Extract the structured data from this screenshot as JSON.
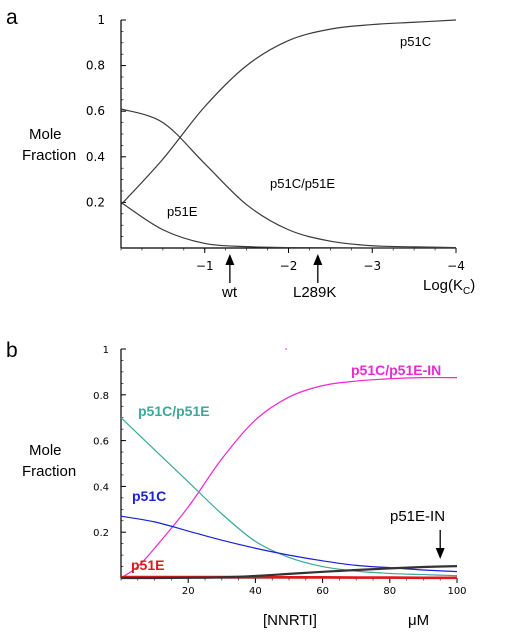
{
  "chart_data": [
    {
      "panel_label": "a",
      "type": "line",
      "ylabel_lines": [
        "Mole",
        "Fraction"
      ],
      "xlabel_text": "Log(K",
      "xlabel_sub": "C",
      "xlabel_close": ")",
      "xlim": [
        0,
        -4
      ],
      "ylim": [
        0,
        1
      ],
      "xticks": [
        -1,
        -2,
        -3,
        -4
      ],
      "xtick_labels": [
        "−1",
        "−2",
        "−3",
        "−4"
      ],
      "yticks": [
        0.2,
        0.4,
        0.6,
        0.8,
        1
      ],
      "ytick_labels": [
        "0.2",
        "0.4",
        "0.6",
        "0.8",
        "1"
      ],
      "series": [
        {
          "name": "p51C",
          "color": "#3a3a3a",
          "x": [
            0,
            -0.5,
            -1,
            -1.5,
            -2,
            -2.5,
            -3,
            -3.5,
            -4
          ],
          "y": [
            0.19,
            0.39,
            0.62,
            0.8,
            0.91,
            0.96,
            0.98,
            0.99,
            1.0
          ]
        },
        {
          "name": "p51C/p51E",
          "color": "#3a3a3a",
          "x": [
            0,
            -0.5,
            -1,
            -1.5,
            -2,
            -2.5,
            -3,
            -3.5,
            -4
          ],
          "y": [
            0.61,
            0.55,
            0.37,
            0.19,
            0.08,
            0.03,
            0.01,
            0.005,
            0.002
          ]
        },
        {
          "name": "p51E",
          "color": "#3a3a3a",
          "x": [
            0,
            -0.5,
            -1,
            -1.5,
            -2,
            -2.5,
            -3,
            -3.5,
            -4
          ],
          "y": [
            0.2,
            0.08,
            0.02,
            0.006,
            0.002,
            0.001,
            0.0,
            0.0,
            0.0
          ]
        }
      ],
      "annotations": [
        {
          "text": "wt",
          "x": -1.3
        },
        {
          "text": "L289K",
          "x": -2.35
        }
      ]
    },
    {
      "panel_label": "b",
      "type": "line",
      "ylabel_lines": [
        "Mole",
        "Fraction"
      ],
      "xlabel": "[NNRTI]",
      "xunit": "μM",
      "xlim": [
        0,
        100
      ],
      "ylim": [
        0,
        1
      ],
      "xticks": [
        20,
        40,
        60,
        80,
        100
      ],
      "xtick_labels": [
        "20",
        "40",
        "60",
        "80",
        "100"
      ],
      "yticks": [
        0.2,
        0.4,
        0.6,
        0.8,
        1
      ],
      "ytick_labels": [
        "0.2",
        "0.4",
        "0.6",
        "0.8",
        "1"
      ],
      "series": [
        {
          "name": "p51C/p51E-IN",
          "color": "#ee28d0",
          "x": [
            0,
            5,
            10,
            20,
            30,
            40,
            50,
            60,
            70,
            80,
            90,
            100
          ],
          "y": [
            0.0,
            0.05,
            0.13,
            0.31,
            0.52,
            0.69,
            0.79,
            0.84,
            0.86,
            0.87,
            0.875,
            0.875
          ]
        },
        {
          "name": "p51C/p51E",
          "color": "#3aa89a",
          "x": [
            0,
            10,
            20,
            30,
            40,
            50,
            60,
            70,
            80,
            90,
            100
          ],
          "y": [
            0.7,
            0.56,
            0.42,
            0.28,
            0.16,
            0.09,
            0.05,
            0.03,
            0.02,
            0.015,
            0.01
          ]
        },
        {
          "name": "p51C",
          "color": "#1a22d4",
          "x": [
            0,
            10,
            20,
            30,
            40,
            50,
            60,
            70,
            80,
            90,
            100
          ],
          "y": [
            0.27,
            0.245,
            0.205,
            0.165,
            0.13,
            0.1,
            0.075,
            0.055,
            0.045,
            0.035,
            0.028
          ]
        },
        {
          "name": "p51E",
          "color": "#e01a1a",
          "x": [
            0,
            10,
            20,
            30,
            40,
            50,
            60,
            70,
            80,
            90,
            100
          ],
          "y": [
            0.004,
            0.004,
            0.004,
            0.004,
            0.004,
            0.003,
            0.003,
            0.002,
            0.002,
            0.001,
            0.001
          ]
        },
        {
          "name": "p51E-IN",
          "color": "#333333",
          "x": [
            0,
            10,
            20,
            30,
            40,
            50,
            60,
            70,
            80,
            90,
            100
          ],
          "y": [
            0.0,
            0.0,
            0.001,
            0.003,
            0.009,
            0.018,
            0.027,
            0.035,
            0.042,
            0.048,
            0.052
          ]
        }
      ],
      "annotations": [
        {
          "text": "p51E-IN",
          "x": 95
        }
      ]
    }
  ]
}
